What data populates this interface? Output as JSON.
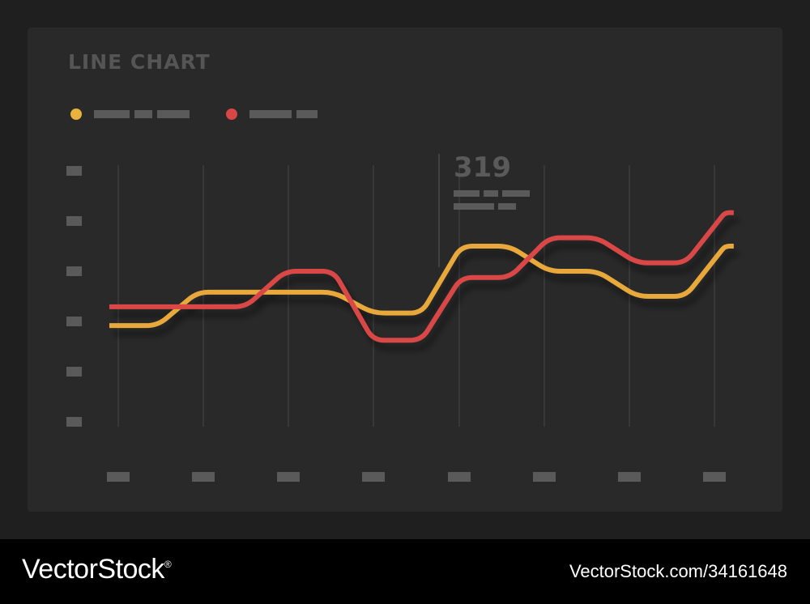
{
  "chart_data": {
    "type": "line",
    "title": "LINE CHART",
    "x": [
      0,
      1,
      2,
      3,
      4,
      5,
      6,
      7
    ],
    "series": [
      {
        "color": "#e8a83a",
        "values": [
          1.3,
          2.1,
          2.1,
          1.6,
          3.2,
          2.6,
          2.0,
          3.2
        ]
      },
      {
        "color": "#d94646",
        "values": [
          1.75,
          1.75,
          2.6,
          0.95,
          2.45,
          3.4,
          2.8,
          4.0
        ]
      }
    ],
    "ylim": [
      -1,
      5
    ],
    "xlim": [
      0,
      7
    ],
    "highlight": {
      "value": "319"
    },
    "grid": "vertical",
    "legend": "top-left"
  },
  "colors": {
    "panel_bg": "#292929",
    "placeholder": "#5a5a5a",
    "gridline": "#3e3e3e"
  },
  "footer": {
    "brand": "VectorStock",
    "brand_mark": "®",
    "credit": "VectorStock.com/34161648"
  }
}
